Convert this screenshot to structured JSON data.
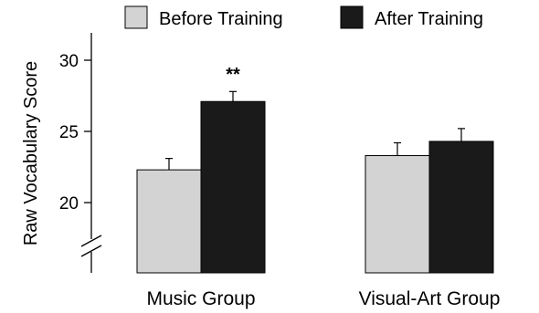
{
  "chart_data": {
    "type": "bar",
    "title": "",
    "xlabel": "",
    "ylabel": "Raw Vocabulary Score",
    "categories": [
      "Music Group",
      "Visual-Art Group"
    ],
    "series": [
      {
        "name": "Before Training",
        "values": [
          22.3,
          23.3
        ],
        "errors": [
          0.8,
          0.9
        ],
        "color": "#d3d3d3"
      },
      {
        "name": "After Training",
        "values": [
          27.1,
          24.3
        ],
        "errors": [
          0.7,
          0.9
        ],
        "color": "#1a1a1a"
      }
    ],
    "y_axis": {
      "ticks": [
        20,
        25,
        30
      ],
      "tick_labels": [
        "20",
        "25",
        "30"
      ],
      "range": [
        15,
        32
      ],
      "broken": true
    },
    "legend_position": "top",
    "annotations": [
      {
        "text": "**",
        "category": "Music Group"
      }
    ],
    "grid": false
  }
}
